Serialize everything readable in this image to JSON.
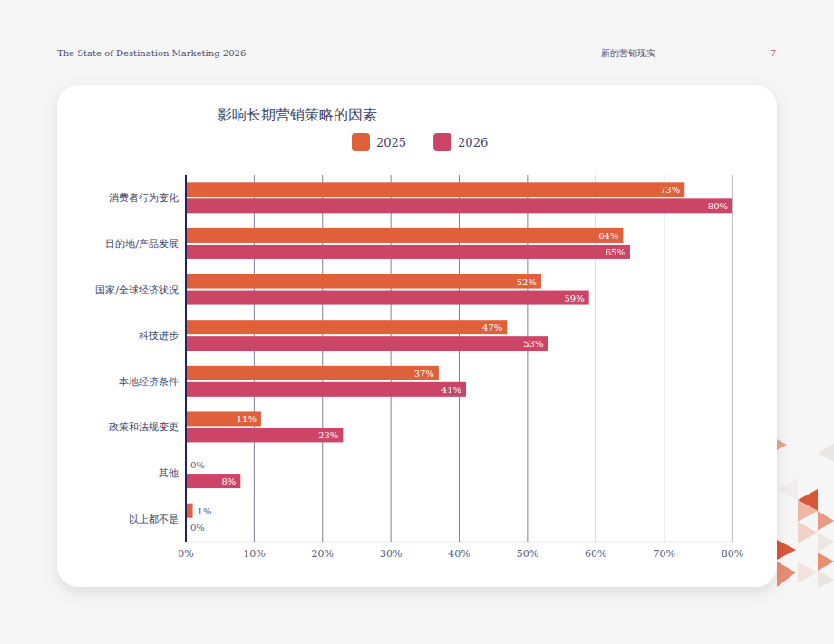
{
  "page": {
    "header_left": "The State of Destination Marketing 2026",
    "header_center": "新的营销现实",
    "page_number": "7"
  },
  "chart_data": {
    "type": "bar",
    "orientation": "horizontal",
    "title": "影响长期营销策略的因素",
    "categories": [
      "消费者行为变化",
      "目的地/产品发展",
      "国家/全球经济状况",
      "科技进步",
      "本地经济条件",
      "政策和法规变更",
      "其他",
      "以上都不是"
    ],
    "series": [
      {
        "name": "2025",
        "color": "#e0603c",
        "values": [
          73,
          64,
          52,
          47,
          37,
          11,
          0,
          1
        ],
        "value_labels": [
          "73%",
          "64%",
          "52%",
          "47%",
          "37%",
          "11%",
          "0%",
          "1%"
        ]
      },
      {
        "name": "2026",
        "color": "#cc4466",
        "values": [
          80,
          65,
          59,
          53,
          41,
          23,
          8,
          0
        ],
        "value_labels": [
          "80%",
          "65%",
          "59%",
          "53%",
          "41%",
          "23%",
          "8%",
          "0%"
        ]
      }
    ],
    "xlim": [
      0,
      80
    ],
    "xticks": [
      {
        "value": 0,
        "label": "0%"
      },
      {
        "value": 10,
        "label": "10%"
      },
      {
        "value": 20,
        "label": "20%"
      },
      {
        "value": 30,
        "label": "30%"
      },
      {
        "value": 40,
        "label": "40%"
      },
      {
        "value": 50,
        "label": "50%"
      },
      {
        "value": 60,
        "label": "60%"
      },
      {
        "value": 70,
        "label": "70%"
      },
      {
        "value": 80,
        "label": "80%"
      }
    ],
    "grid": true,
    "legend": "top",
    "data_labels": true
  }
}
